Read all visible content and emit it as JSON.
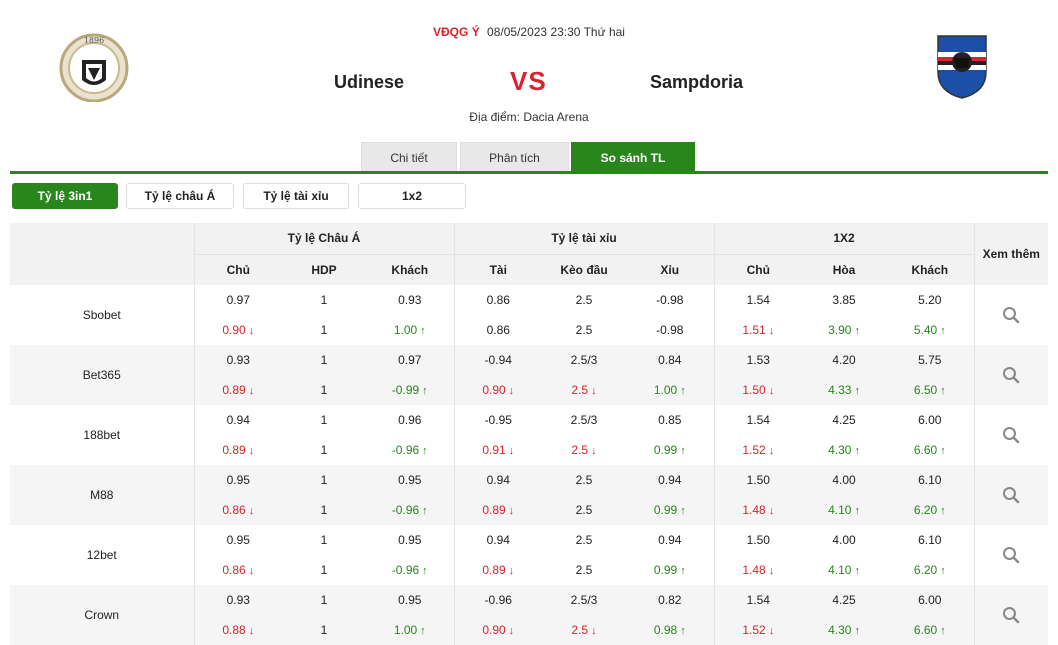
{
  "header": {
    "league": "VĐQG Ý",
    "datetime": "08/05/2023 23:30 Thứ hai",
    "home_team": "Udinese",
    "vs": "VS",
    "away_team": "Sampdoria",
    "venue": "Địa điểm: Dacia Arena",
    "home_logo_text": "1896"
  },
  "tabs": [
    "Chi tiết",
    "Phân tích",
    "So sánh TL"
  ],
  "active_tab": 2,
  "subtabs": [
    "Tỷ lệ 3in1",
    "Tỷ lệ châu Á",
    "Tỷ lệ tài xỉu",
    "1x2"
  ],
  "active_subtab": 0,
  "table": {
    "groups": [
      "Tỷ lệ Châu Á",
      "Tỷ lệ tài xỉu",
      "1X2"
    ],
    "more_label": "Xem thêm",
    "columns": [
      "Chủ",
      "HDP",
      "Khách",
      "Tài",
      "Kèo đầu",
      "Xỉu",
      "Chủ",
      "Hòa",
      "Khách"
    ],
    "rows": [
      {
        "bookmaker": "Sbobet",
        "open": [
          "0.97",
          "1",
          "0.93",
          "0.86",
          "2.5",
          "-0.98",
          "1.54",
          "3.85",
          "5.20"
        ],
        "live": [
          "0.90",
          "1",
          "1.00",
          "0.86",
          "2.5",
          "-0.98",
          "1.51",
          "3.90",
          "5.40"
        ],
        "dir": [
          "down",
          "",
          "up",
          "",
          "",
          "",
          "down",
          "up",
          "up"
        ]
      },
      {
        "bookmaker": "Bet365",
        "open": [
          "0.93",
          "1",
          "0.97",
          "-0.94",
          "2.5/3",
          "0.84",
          "1.53",
          "4.20",
          "5.75"
        ],
        "live": [
          "0.89",
          "1",
          "-0.99",
          "0.90",
          "2.5",
          "1.00",
          "1.50",
          "4.33",
          "6.50"
        ],
        "dir": [
          "down",
          "",
          "up",
          "down",
          "down",
          "up",
          "down",
          "up",
          "up"
        ]
      },
      {
        "bookmaker": "188bet",
        "open": [
          "0.94",
          "1",
          "0.96",
          "-0.95",
          "2.5/3",
          "0.85",
          "1.54",
          "4.25",
          "6.00"
        ],
        "live": [
          "0.89",
          "1",
          "-0.96",
          "0.91",
          "2.5",
          "0.99",
          "1.52",
          "4.30",
          "6.60"
        ],
        "dir": [
          "down",
          "",
          "up",
          "down",
          "down",
          "up",
          "down",
          "up",
          "up"
        ]
      },
      {
        "bookmaker": "M88",
        "open": [
          "0.95",
          "1",
          "0.95",
          "0.94",
          "2.5",
          "0.94",
          "1.50",
          "4.00",
          "6.10"
        ],
        "live": [
          "0.86",
          "1",
          "-0.96",
          "0.89",
          "2.5",
          "0.99",
          "1.48",
          "4.10",
          "6.20"
        ],
        "dir": [
          "down",
          "",
          "up",
          "down",
          "",
          "up",
          "down",
          "up",
          "up"
        ]
      },
      {
        "bookmaker": "12bet",
        "open": [
          "0.95",
          "1",
          "0.95",
          "0.94",
          "2.5",
          "0.94",
          "1.50",
          "4.00",
          "6.10"
        ],
        "live": [
          "0.86",
          "1",
          "-0.96",
          "0.89",
          "2.5",
          "0.99",
          "1.48",
          "4.10",
          "6.20"
        ],
        "dir": [
          "down",
          "",
          "up",
          "down",
          "",
          "up",
          "down",
          "up",
          "up"
        ]
      },
      {
        "bookmaker": "Crown",
        "open": [
          "0.93",
          "1",
          "0.95",
          "-0.96",
          "2.5/3",
          "0.82",
          "1.54",
          "4.25",
          "6.00"
        ],
        "live": [
          "0.88",
          "1",
          "1.00",
          "0.90",
          "2.5",
          "0.98",
          "1.52",
          "4.30",
          "6.60"
        ],
        "dir": [
          "down",
          "",
          "up",
          "down",
          "down",
          "up",
          "down",
          "up",
          "up"
        ]
      }
    ]
  },
  "colors": {
    "accent": "#28861c",
    "down": "#d9232e",
    "up": "#28861c"
  }
}
